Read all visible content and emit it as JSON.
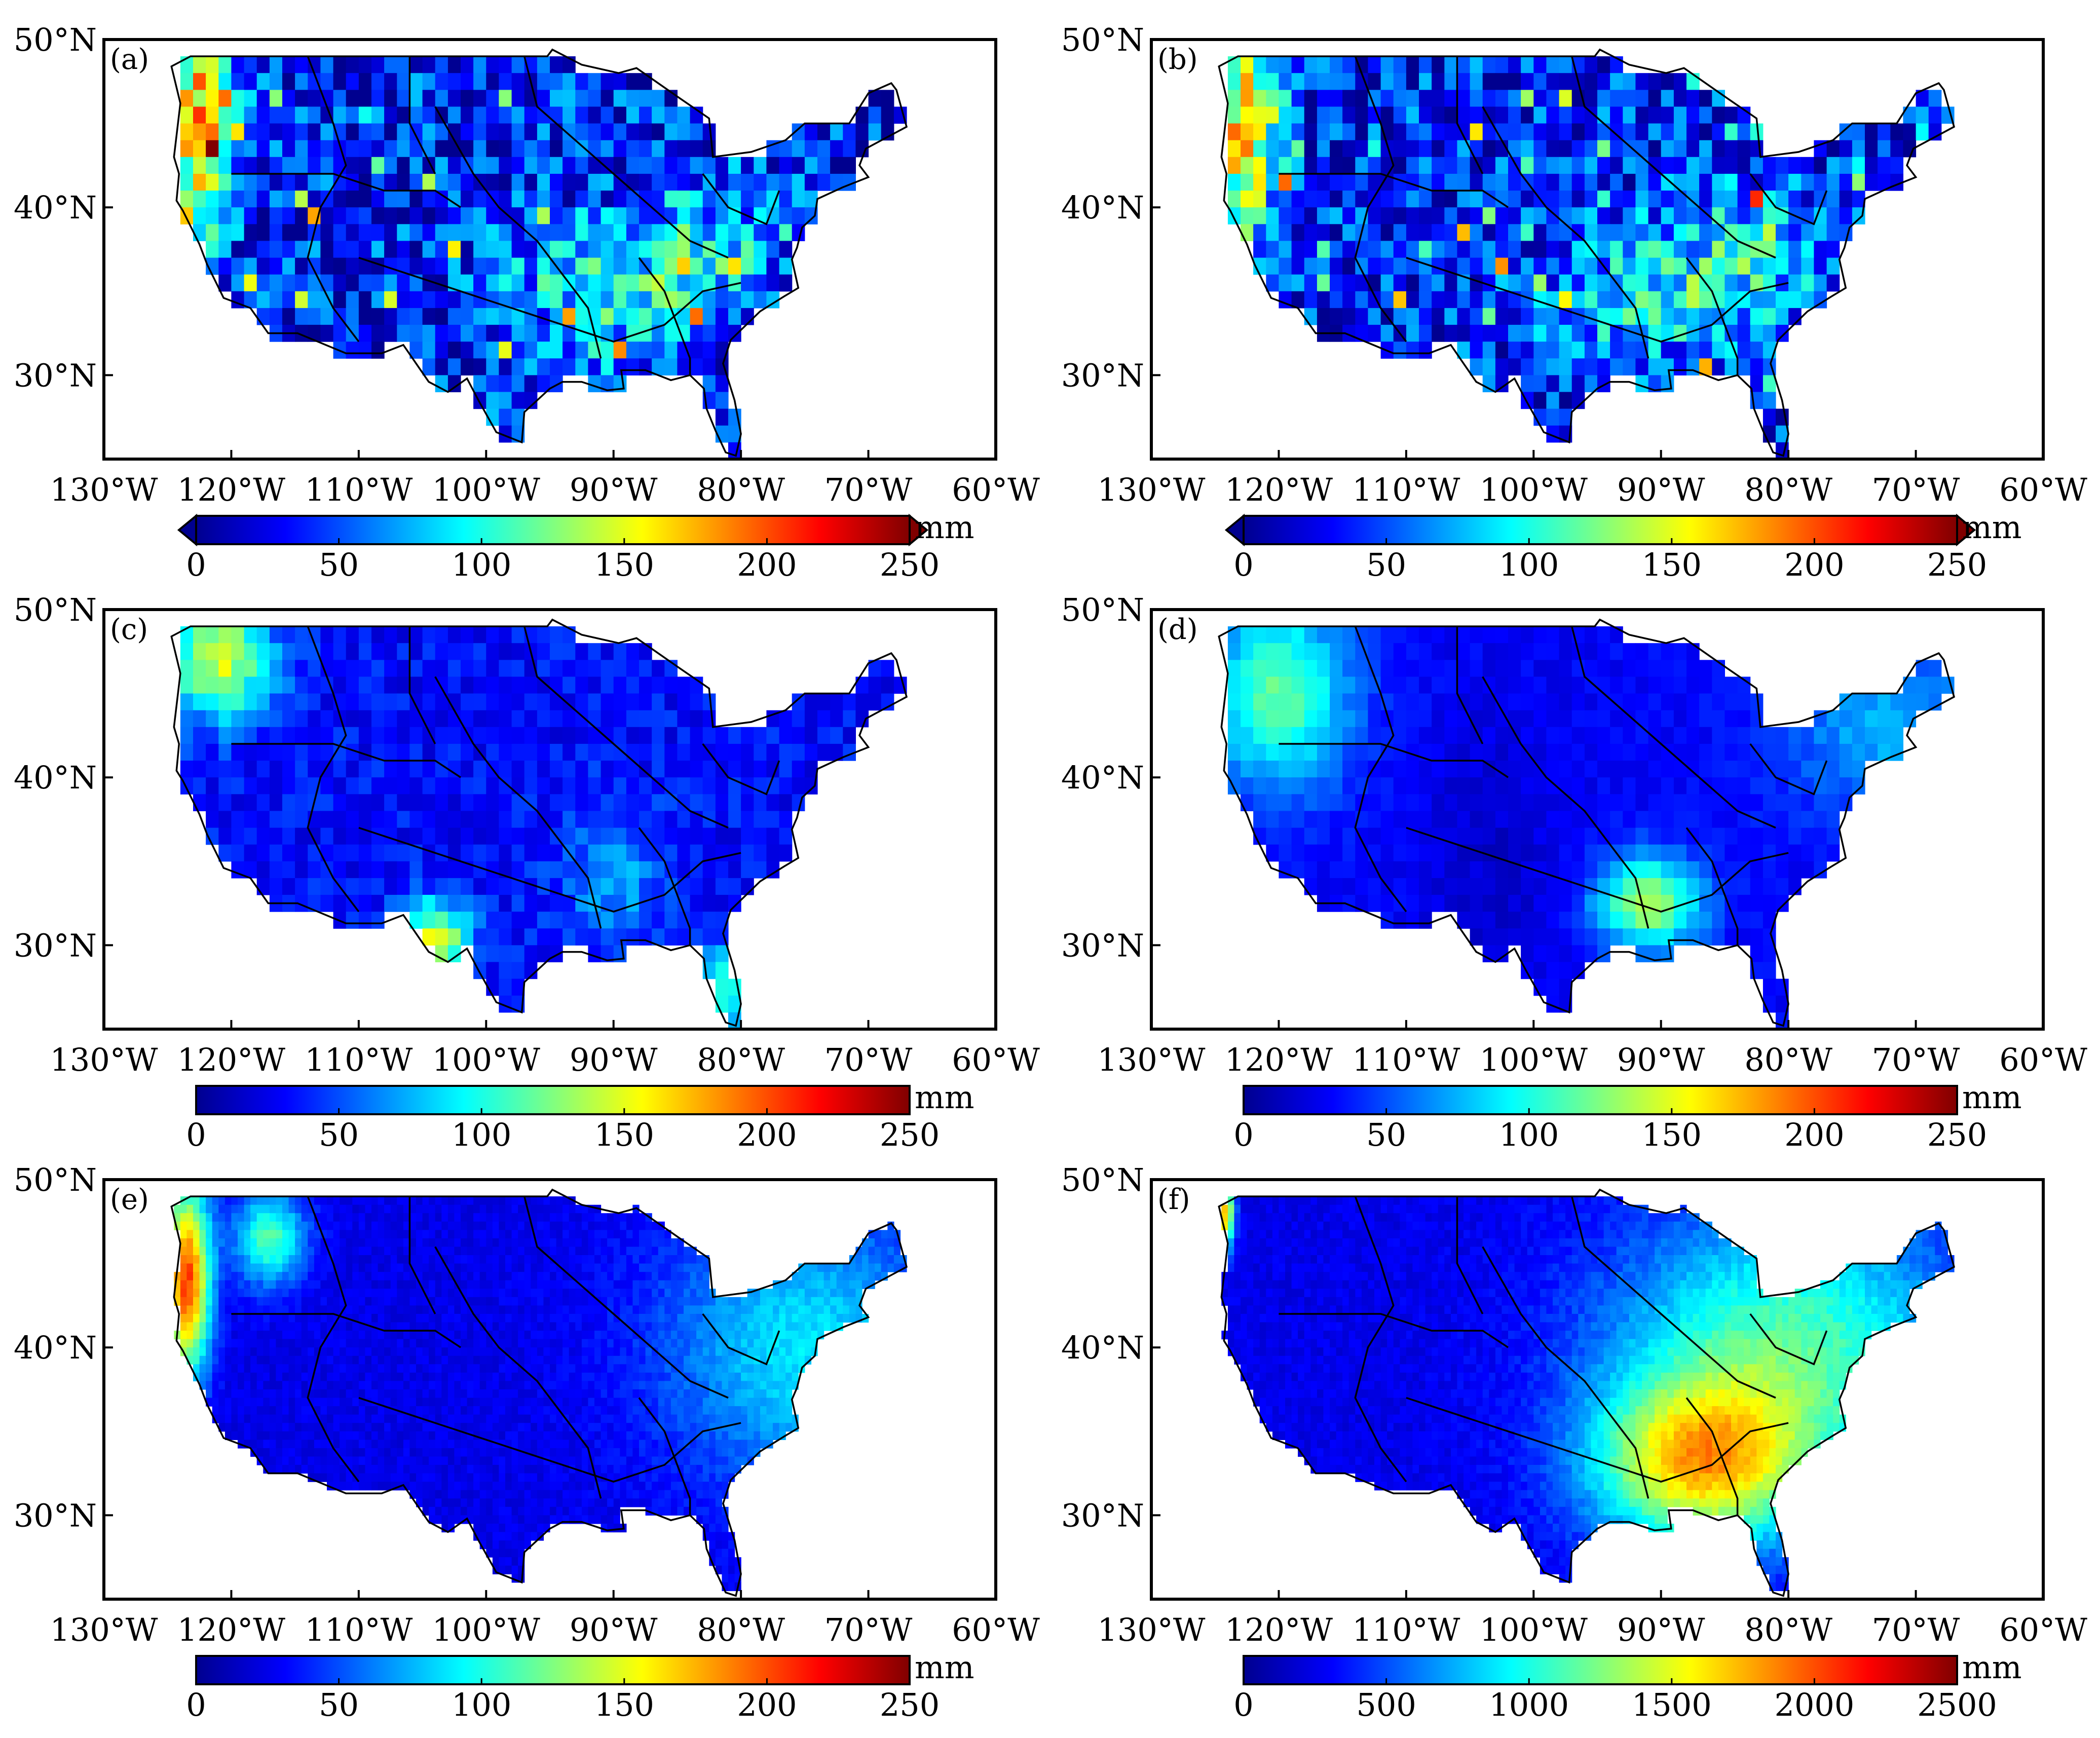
{
  "figure": {
    "lon_tick_labels": [
      "130°W",
      "120°W",
      "110°W",
      "100°W",
      "90°W",
      "80°W",
      "70°W",
      "60°W"
    ],
    "lat_tick_labels": [
      "30°N",
      "40°N",
      "50°N"
    ],
    "colorbar_unit": "mm",
    "colormap": [
      "#00008f",
      "#0000ff",
      "#0080ff",
      "#00ffff",
      "#80ff80",
      "#ffff00",
      "#ff8000",
      "#ff0000",
      "#800000"
    ]
  },
  "panels": [
    {
      "label": "(a)",
      "colorbar": {
        "min": 0,
        "max": 250,
        "ticks": [
          "0",
          "50",
          "100",
          "150",
          "200",
          "250"
        ],
        "extend_arrows": true
      }
    },
    {
      "label": "(b)",
      "colorbar": {
        "min": 0,
        "max": 250,
        "ticks": [
          "0",
          "50",
          "100",
          "150",
          "200",
          "250"
        ],
        "extend_arrows": true
      }
    },
    {
      "label": "(c)",
      "colorbar": {
        "min": 0,
        "max": 250,
        "ticks": [
          "0",
          "50",
          "100",
          "150",
          "200",
          "250"
        ],
        "extend_arrows": false
      }
    },
    {
      "label": "(d)",
      "colorbar": {
        "min": 0,
        "max": 250,
        "ticks": [
          "0",
          "50",
          "100",
          "150",
          "200",
          "250"
        ],
        "extend_arrows": false
      }
    },
    {
      "label": "(e)",
      "colorbar": {
        "min": 0,
        "max": 250,
        "ticks": [
          "0",
          "50",
          "100",
          "150",
          "200",
          "250"
        ],
        "extend_arrows": false
      }
    },
    {
      "label": "(f)",
      "colorbar": {
        "min": 0,
        "max": 2500,
        "ticks": [
          "0",
          "500",
          "1000",
          "1500",
          "2000",
          "2500"
        ],
        "extend_arrows": false
      }
    }
  ]
}
